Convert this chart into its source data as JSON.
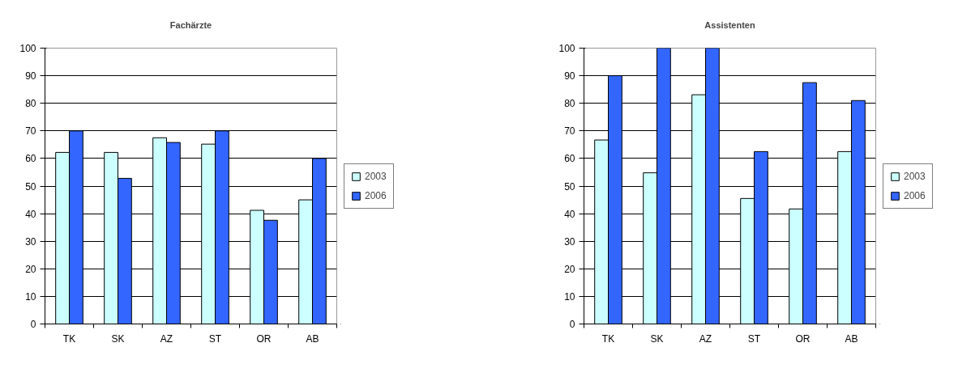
{
  "chart_data": [
    {
      "type": "bar",
      "title": "Fachärzte",
      "categories": [
        "TK",
        "SK",
        "AZ",
        "ST",
        "OR",
        "AB"
      ],
      "ylim": [
        0,
        100
      ],
      "yticks": [
        0,
        10,
        20,
        30,
        40,
        50,
        60,
        70,
        80,
        90,
        100
      ],
      "grid": "y",
      "legend": "right",
      "series": [
        {
          "name": "2003",
          "color": "#ccffff",
          "values": [
            62.2,
            62.2,
            67.5,
            65.2,
            41.2,
            45
          ]
        },
        {
          "name": "2006",
          "color": "#3366ff",
          "values": [
            70,
            52.8,
            65.8,
            70,
            37.6,
            60
          ]
        }
      ]
    },
    {
      "type": "bar",
      "title": "Assistenten",
      "categories": [
        "TK",
        "SK",
        "AZ",
        "ST",
        "OR",
        "AB"
      ],
      "ylim": [
        0,
        100
      ],
      "yticks": [
        0,
        10,
        20,
        30,
        40,
        50,
        60,
        70,
        80,
        90,
        100
      ],
      "grid": "y",
      "legend": "right",
      "series": [
        {
          "name": "2003",
          "color": "#ccffff",
          "values": [
            66.7,
            54.8,
            83.1,
            45.5,
            41.7,
            62.5
          ]
        },
        {
          "name": "2006",
          "color": "#3366ff",
          "values": [
            90,
            100,
            100,
            62.5,
            87.5,
            81
          ]
        }
      ]
    }
  ]
}
